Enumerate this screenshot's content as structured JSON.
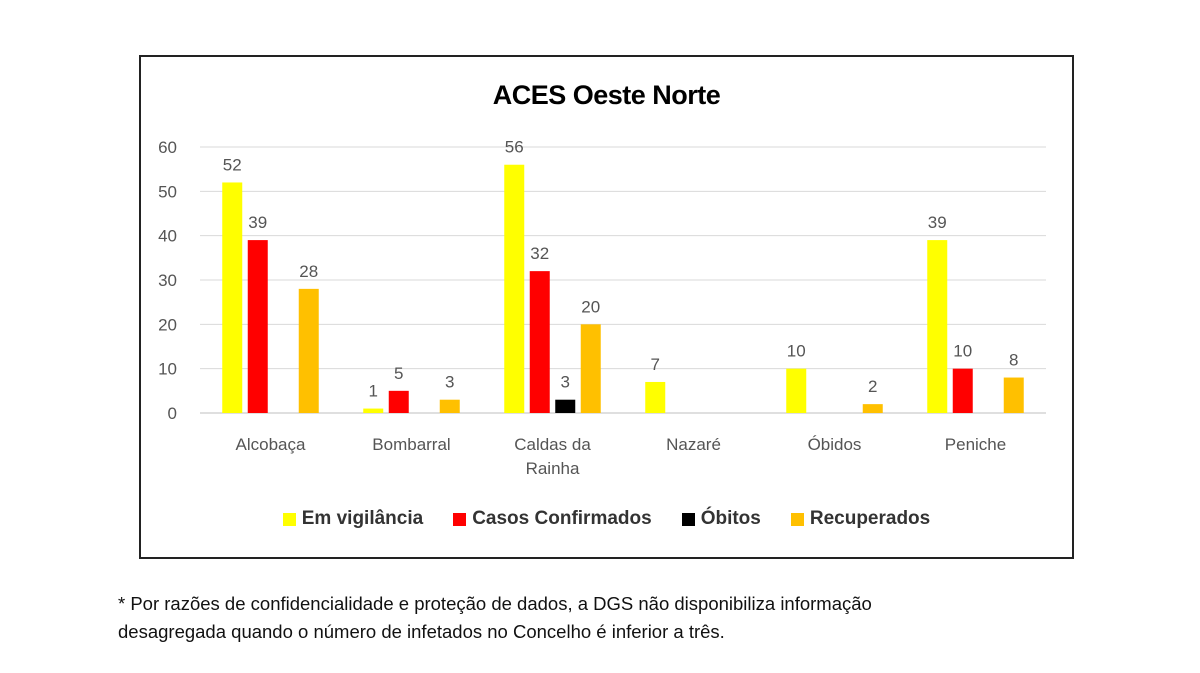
{
  "chart_data": {
    "type": "bar",
    "title": "ACES Oeste Norte",
    "xlabel": "",
    "ylabel": "",
    "ylim": [
      0,
      60
    ],
    "yticks": [
      "0",
      "10",
      "20",
      "30",
      "40",
      "50",
      "60"
    ],
    "grid": true,
    "legend_position": "bottom",
    "categories": [
      [
        "Alcobaça"
      ],
      [
        "Bombarral"
      ],
      [
        "Caldas da",
        "Rainha"
      ],
      [
        "Nazaré"
      ],
      [
        "Óbidos"
      ],
      [
        "Peniche"
      ]
    ],
    "series": [
      {
        "name": "Em vigilância",
        "color": "#ffff00",
        "values": [
          52,
          1,
          56,
          7,
          10,
          39
        ]
      },
      {
        "name": "Casos Confirmados",
        "color": "#ff0000",
        "values": [
          39,
          5,
          32,
          null,
          null,
          10
        ]
      },
      {
        "name": "Óbitos",
        "color": "#000000",
        "values": [
          null,
          null,
          3,
          null,
          null,
          null
        ]
      },
      {
        "name": "Recuperados",
        "color": "#ffc000",
        "values": [
          28,
          3,
          20,
          null,
          2,
          8
        ]
      }
    ]
  },
  "footnote": {
    "line1": "* Por razões de confidencialidade e proteção de dados, a DGS não disponibiliza informação",
    "line2": "desagregada quando o número de infetados no Concelho é inferior a três."
  }
}
